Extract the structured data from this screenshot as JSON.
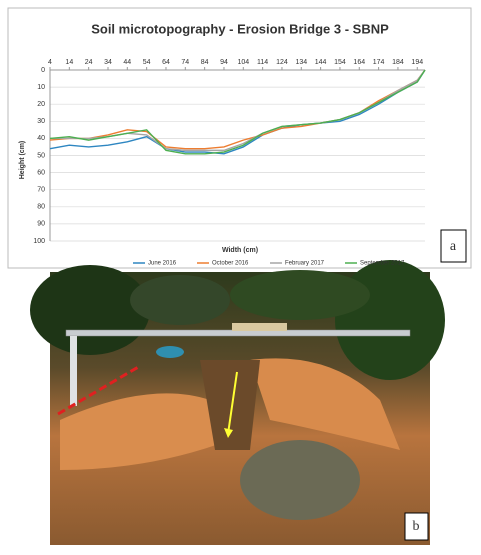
{
  "chart_data": {
    "type": "line",
    "title": "Soil microtopography - Erosion Bridge 3 - SBNP",
    "x_label": "Width (cm)",
    "y_label": "Height (cm)",
    "x": [
      4,
      14,
      24,
      34,
      44,
      54,
      64,
      74,
      84,
      94,
      104,
      114,
      124,
      134,
      144,
      154,
      164,
      174,
      184,
      194,
      198
    ],
    "series": [
      {
        "name": "June 2016",
        "color": "#2e86c1",
        "values": [
          46,
          44,
          45,
          44,
          42,
          39,
          46,
          48,
          48,
          49,
          45,
          38,
          34,
          32,
          31,
          30,
          26,
          20,
          13,
          7,
          0
        ]
      },
      {
        "name": "October 2016",
        "color": "#ed7d31",
        "values": [
          41,
          40,
          40,
          38,
          35,
          36,
          45,
          46,
          46,
          45,
          41,
          38,
          34,
          33,
          31,
          29,
          25,
          18,
          12,
          6,
          0
        ]
      },
      {
        "name": "February 2017",
        "color": "#a5a5a5",
        "values": [
          40,
          40,
          40,
          39,
          37,
          38,
          46,
          47,
          47,
          47,
          43,
          37,
          33,
          32,
          31,
          29,
          25,
          19,
          12,
          6,
          0
        ]
      },
      {
        "name": "September 2017",
        "color": "#4caf50",
        "values": [
          40,
          39,
          41,
          39,
          37,
          35,
          47,
          49,
          49,
          48,
          44,
          37,
          33,
          32,
          31,
          29,
          25,
          19,
          13,
          7,
          0
        ]
      }
    ],
    "xlim": [
      4,
      198
    ],
    "xticks": [
      4,
      14,
      24,
      34,
      44,
      54,
      64,
      74,
      84,
      94,
      104,
      114,
      124,
      134,
      144,
      154,
      164,
      174,
      184,
      194
    ],
    "ylim": [
      0,
      100
    ],
    "yticks": [
      0,
      10,
      20,
      30,
      40,
      50,
      60,
      70,
      80,
      90,
      100
    ],
    "y_inverted": true,
    "grid": true,
    "legend": "bottom"
  },
  "panel_labels": [
    "a",
    "b"
  ]
}
